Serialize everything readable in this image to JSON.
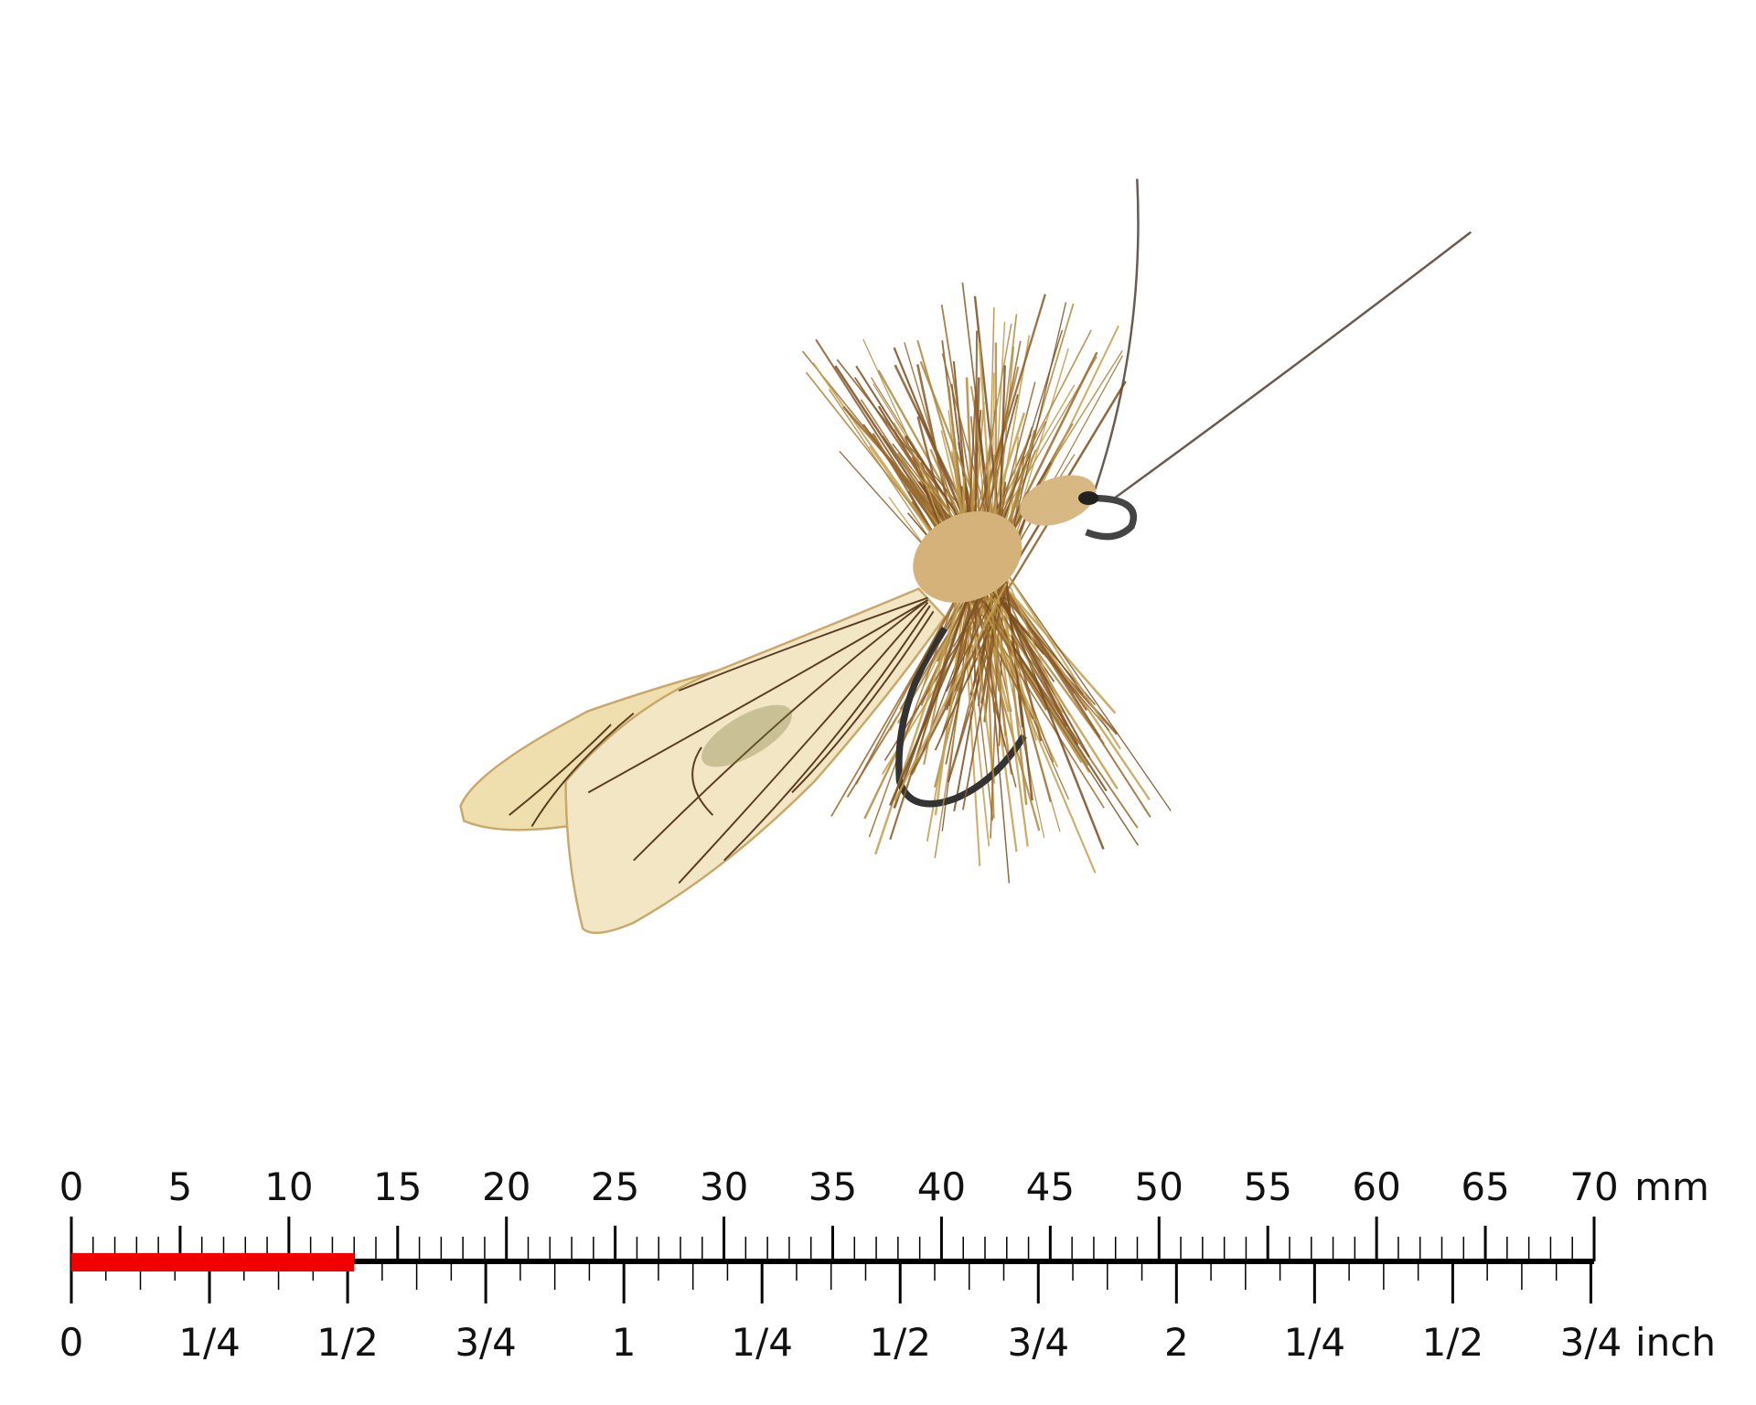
{
  "subject": "dry fly with tan wing, brown hackle and hook",
  "ruler": {
    "mm_unit": "mm",
    "inch_unit": "inch",
    "mm_labels": [
      "0",
      "5",
      "10",
      "15",
      "20",
      "25",
      "30",
      "35",
      "40",
      "45",
      "50",
      "55",
      "60",
      "65",
      "70"
    ],
    "inch_labels": [
      "0",
      "1/4",
      "1/2",
      "3/4",
      "1",
      "1/4",
      "1/2",
      "3/4",
      "2",
      "1/4",
      "1/2",
      "3/4"
    ],
    "max_mm": 70,
    "highlight_mm": 13,
    "highlight_color": "#f20000"
  },
  "colors": {
    "wing": "#f3e6c4",
    "wing_vein": "#5a3e22",
    "hackle": "#9a6a2c",
    "body": "#d4b27a",
    "hook": "#3a3a3a"
  }
}
